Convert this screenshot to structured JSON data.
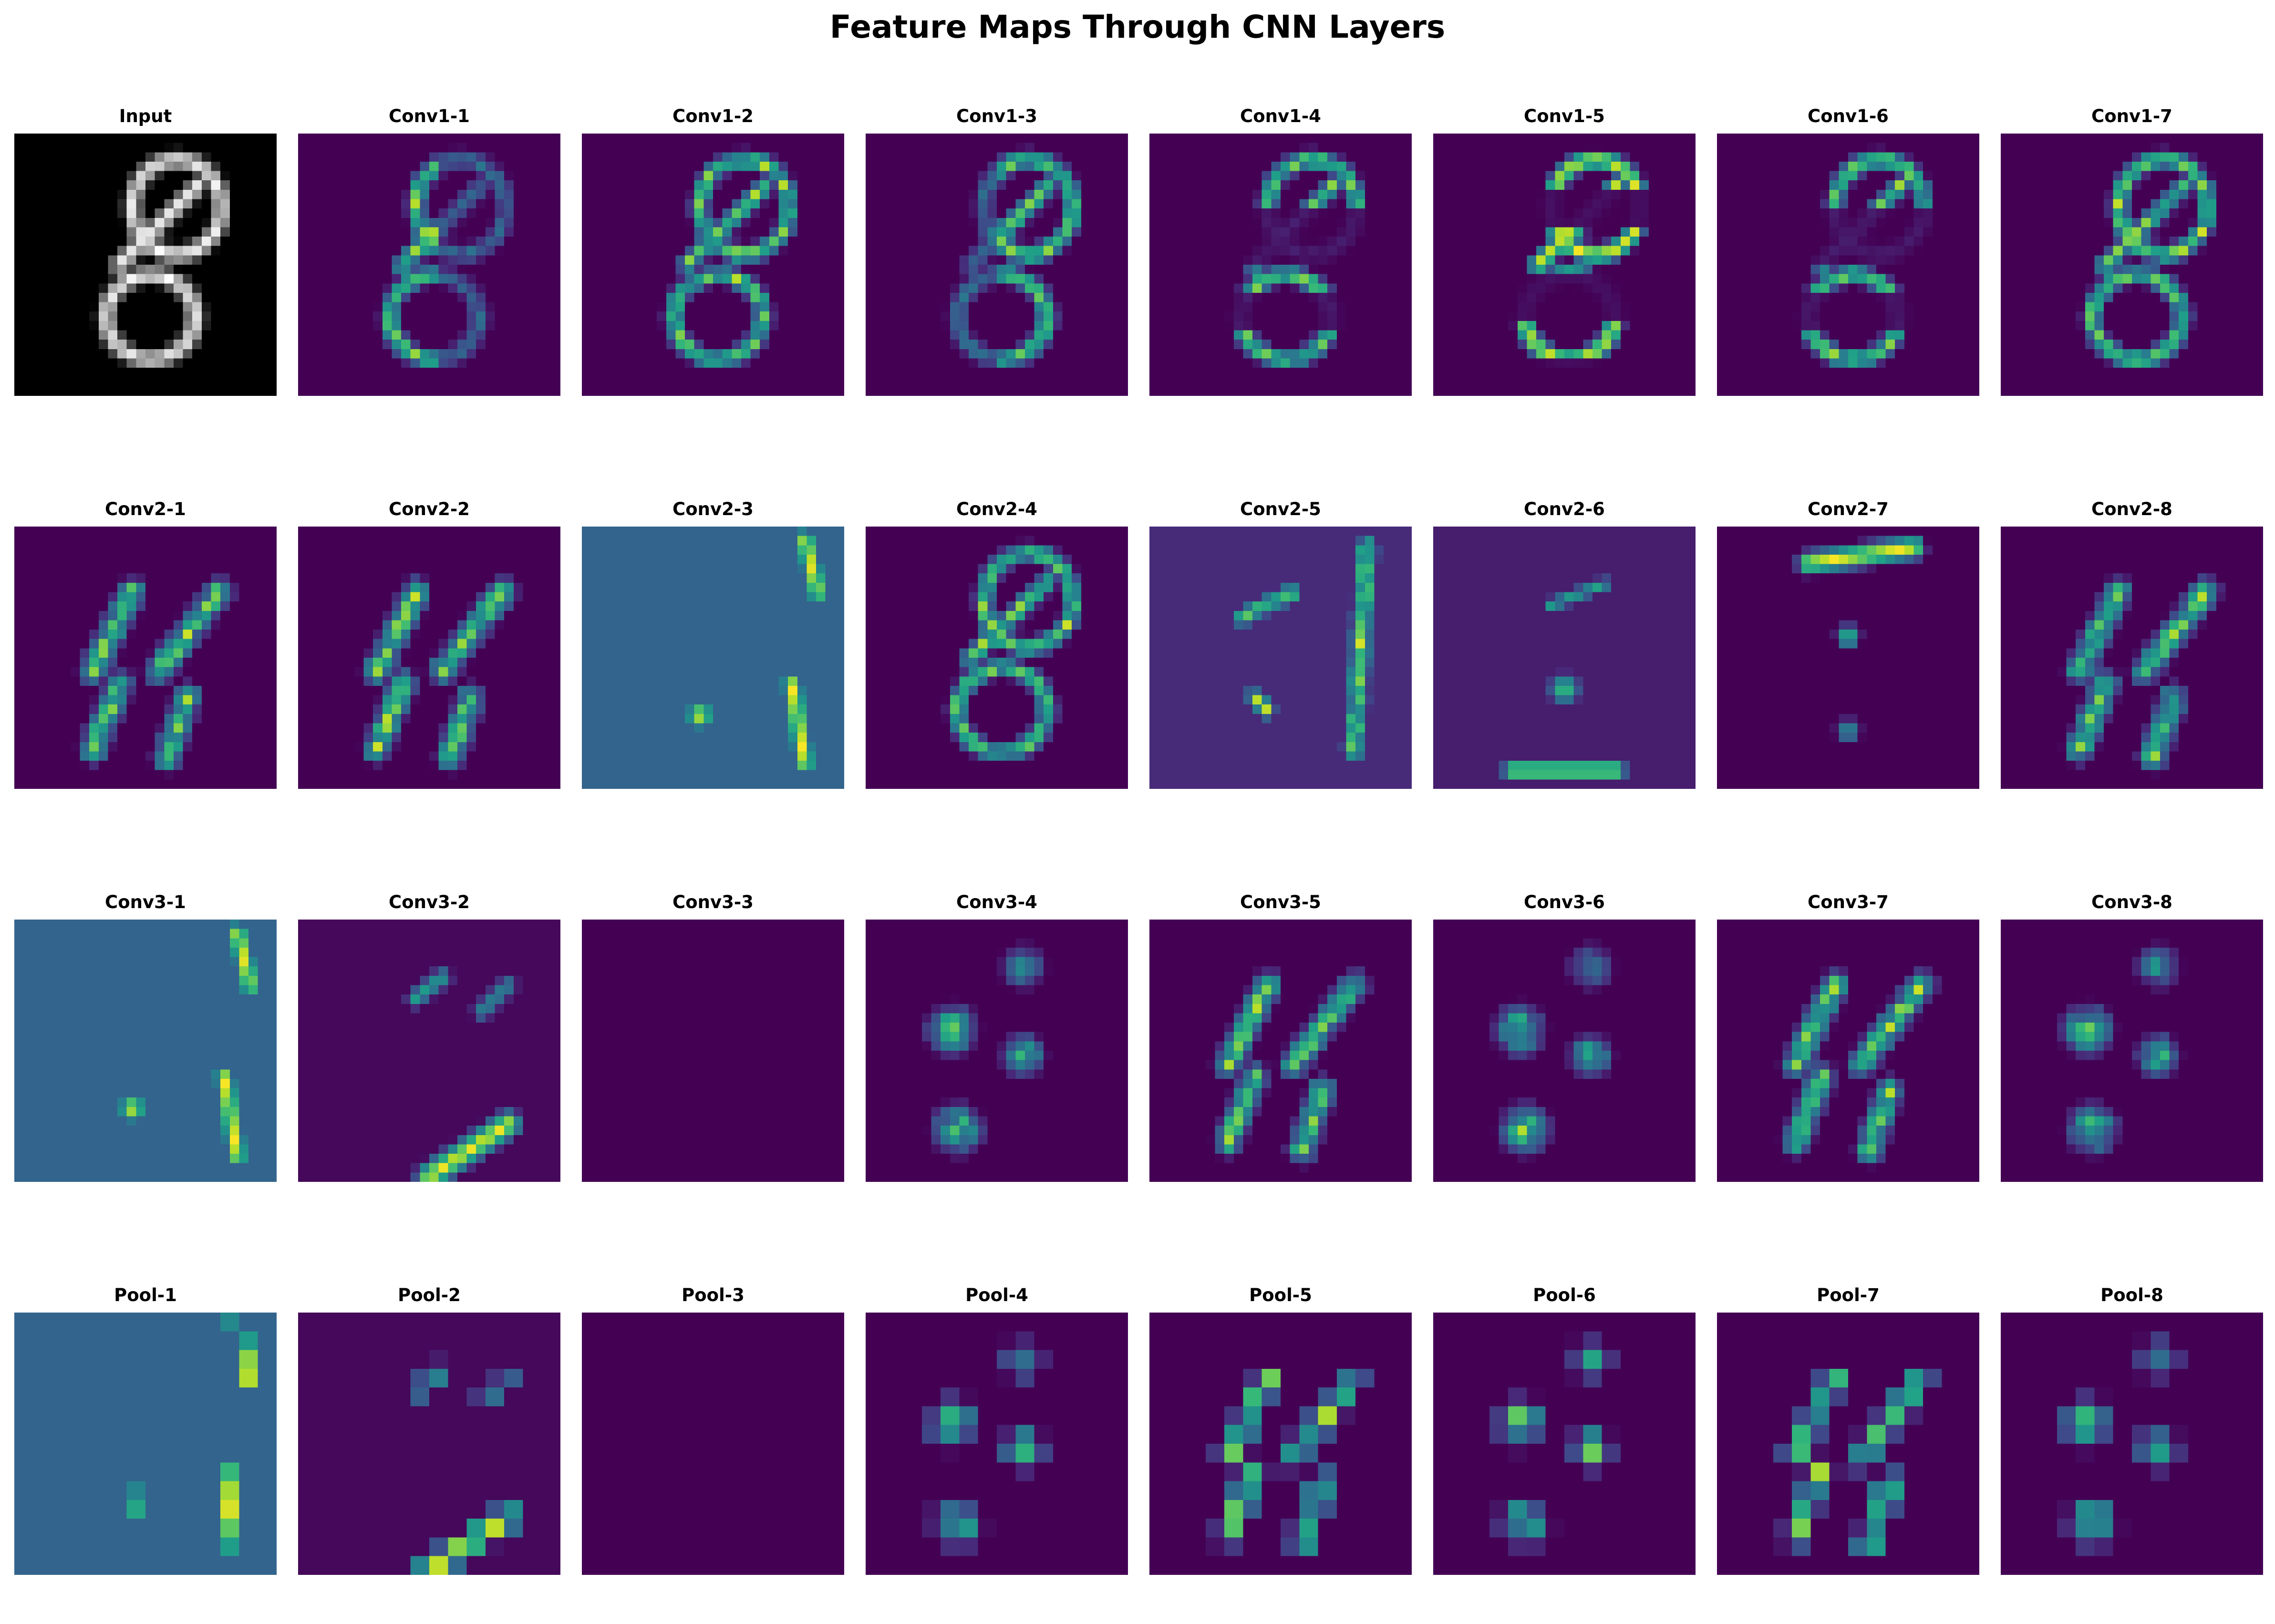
{
  "title": "Feature Maps Through CNN Layers",
  "colormaps": {
    "input": "gray",
    "features": "viridis"
  },
  "rows": [
    {
      "layer": "input-conv1",
      "panels": [
        {
          "id": "input",
          "label": "Input",
          "cmap": "gray",
          "kind": "digit8",
          "res": 28,
          "bg": 0.0
        },
        {
          "id": "conv1-1",
          "label": "Conv1-1",
          "kind": "edgeLeft",
          "res": 28,
          "bg": 0.0
        },
        {
          "id": "conv1-2",
          "label": "Conv1-2",
          "kind": "edgeFull",
          "res": 28,
          "bg": 0.0
        },
        {
          "id": "conv1-3",
          "label": "Conv1-3",
          "kind": "edgeRight",
          "res": 28,
          "bg": 0.0
        },
        {
          "id": "conv1-4",
          "label": "Conv1-4",
          "kind": "edgeTopBottom",
          "res": 28,
          "bg": 0.0
        },
        {
          "id": "conv1-5",
          "label": "Conv1-5",
          "kind": "edgeFragments",
          "res": 28,
          "bg": 0.0
        },
        {
          "id": "conv1-6",
          "label": "Conv1-6",
          "kind": "edgeTopBottom",
          "res": 28,
          "bg": 0.0
        },
        {
          "id": "conv1-7",
          "label": "Conv1-7",
          "kind": "edgeFull",
          "res": 28,
          "bg": 0.0
        }
      ]
    },
    {
      "layer": "conv2",
      "panels": [
        {
          "id": "conv2-1",
          "label": "Conv2-1",
          "kind": "diagStrokes",
          "res": 28,
          "bg": 0.0
        },
        {
          "id": "conv2-2",
          "label": "Conv2-2",
          "kind": "diagStrokes",
          "res": 28,
          "bg": 0.0
        },
        {
          "id": "conv2-3",
          "label": "Conv2-3",
          "kind": "outlineFill",
          "res": 28,
          "bg": 0.32
        },
        {
          "id": "conv2-4",
          "label": "Conv2-4",
          "kind": "edgeFull",
          "res": 28,
          "bg": 0.0
        },
        {
          "id": "conv2-5",
          "label": "Conv2-5",
          "kind": "rightStroke",
          "res": 28,
          "bg": 0.12
        },
        {
          "id": "conv2-6",
          "label": "Conv2-6",
          "kind": "bottomGlow",
          "res": 28,
          "bg": 0.08
        },
        {
          "id": "conv2-7",
          "label": "Conv2-7",
          "kind": "topBar",
          "res": 28,
          "bg": 0.0
        },
        {
          "id": "conv2-8",
          "label": "Conv2-8",
          "kind": "diagStrokes",
          "res": 28,
          "bg": 0.0
        }
      ]
    },
    {
      "layer": "conv3",
      "panels": [
        {
          "id": "conv3-1",
          "label": "Conv3-1",
          "kind": "outlineFill",
          "res": 28,
          "bg": 0.32
        },
        {
          "id": "conv3-2",
          "label": "Conv3-2",
          "kind": "sparseDiag",
          "res": 28,
          "bg": 0.02
        },
        {
          "id": "conv3-3",
          "label": "Conv3-3",
          "kind": "empty",
          "res": 28,
          "bg": 0.0
        },
        {
          "id": "conv3-4",
          "label": "Conv3-4",
          "kind": "blobs",
          "res": 28,
          "bg": 0.0
        },
        {
          "id": "conv3-5",
          "label": "Conv3-5",
          "kind": "diagStrokes",
          "res": 28,
          "bg": 0.0
        },
        {
          "id": "conv3-6",
          "label": "Conv3-6",
          "kind": "blobs",
          "res": 28,
          "bg": 0.0
        },
        {
          "id": "conv3-7",
          "label": "Conv3-7",
          "kind": "diagStrokes",
          "res": 28,
          "bg": 0.0
        },
        {
          "id": "conv3-8",
          "label": "Conv3-8",
          "kind": "blobs",
          "res": 28,
          "bg": 0.0
        }
      ]
    },
    {
      "layer": "pool",
      "panels": [
        {
          "id": "pool-1",
          "label": "Pool-1",
          "kind": "outlineFill",
          "res": 14,
          "bg": 0.32
        },
        {
          "id": "pool-2",
          "label": "Pool-2",
          "kind": "sparseDiag",
          "res": 14,
          "bg": 0.02
        },
        {
          "id": "pool-3",
          "label": "Pool-3",
          "kind": "empty",
          "res": 14,
          "bg": 0.0
        },
        {
          "id": "pool-4",
          "label": "Pool-4",
          "kind": "blobs",
          "res": 14,
          "bg": 0.0
        },
        {
          "id": "pool-5",
          "label": "Pool-5",
          "kind": "diagStrokes",
          "res": 14,
          "bg": 0.0
        },
        {
          "id": "pool-6",
          "label": "Pool-6",
          "kind": "blobs",
          "res": 14,
          "bg": 0.0
        },
        {
          "id": "pool-7",
          "label": "Pool-7",
          "kind": "diagStrokes",
          "res": 14,
          "bg": 0.0
        },
        {
          "id": "pool-8",
          "label": "Pool-8",
          "kind": "blobs",
          "res": 14,
          "bg": 0.0
        }
      ]
    }
  ]
}
